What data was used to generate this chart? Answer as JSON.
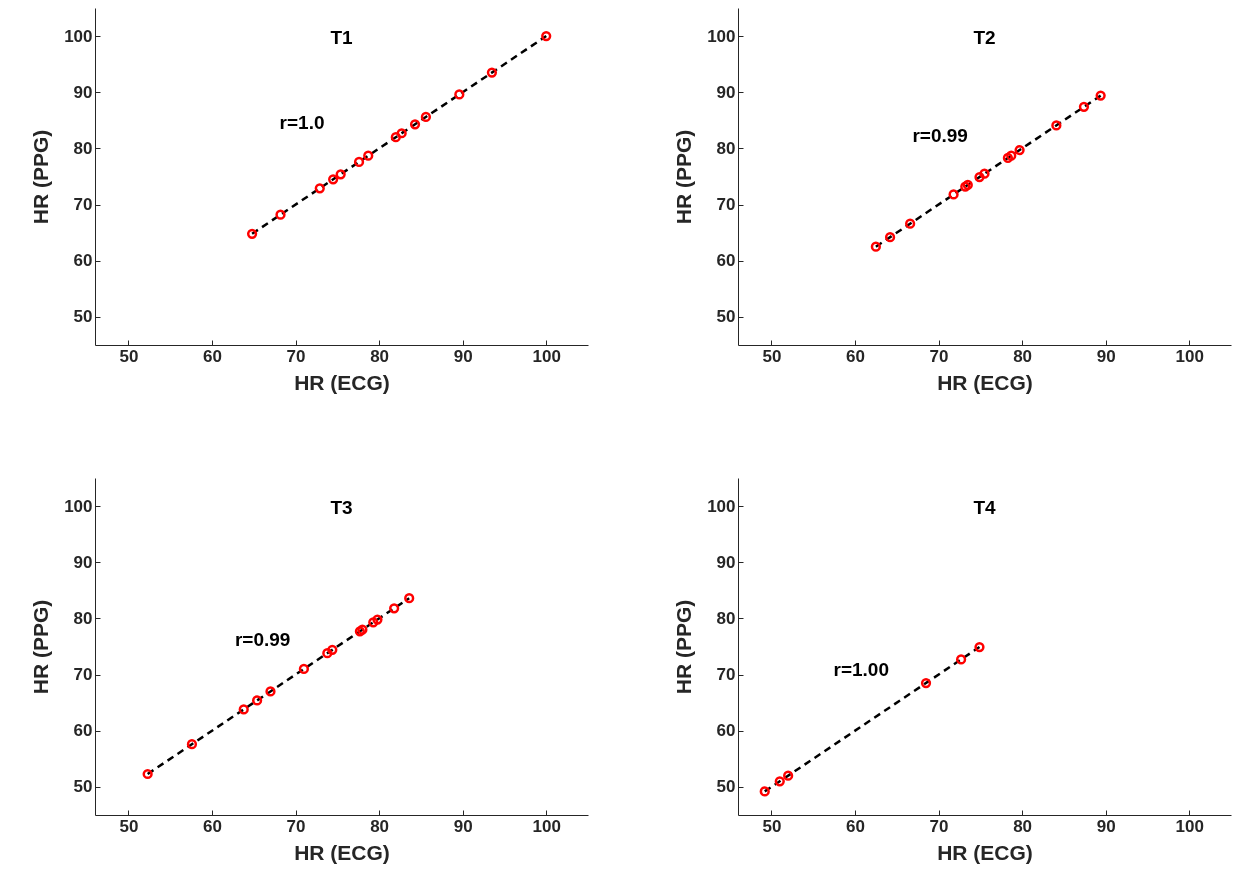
{
  "chart_data": [
    {
      "type": "scatter",
      "title": "T1",
      "xlabel": "HR (ECG)",
      "ylabel": "HR (PPG)",
      "xlim": [
        46,
        105
      ],
      "ylim": [
        45,
        105
      ],
      "xticks": [
        50,
        60,
        70,
        80,
        90,
        100
      ],
      "yticks": [
        50,
        60,
        70,
        80,
        90,
        100
      ],
      "grid": false,
      "annotations": [
        "r=1.0"
      ],
      "series": [
        {
          "color": "#ff0000",
          "marker": "circle",
          "x": [
            64.8,
            68.2,
            72.9,
            74.5,
            75.4,
            77.6,
            78.7,
            82,
            82.7,
            84.3,
            85.6,
            89.6,
            93.5,
            100
          ],
          "values": [
            64.8,
            68.2,
            72.9,
            74.5,
            75.4,
            77.6,
            78.7,
            82,
            82.7,
            84.3,
            85.6,
            89.6,
            93.5,
            100
          ]
        },
        {
          "type": "line",
          "color": "#000000",
          "line_style": "dashed",
          "x": [
            64.8,
            100
          ],
          "values": [
            64.8,
            100
          ]
        }
      ]
    },
    {
      "type": "scatter",
      "title": "T2",
      "xlabel": "HR (ECG)",
      "ylabel": "HR (PPG)",
      "xlim": [
        46,
        105
      ],
      "ylim": [
        45,
        105
      ],
      "xticks": [
        50,
        60,
        70,
        80,
        90,
        100
      ],
      "yticks": [
        50,
        60,
        70,
        80,
        90,
        100
      ],
      "grid": false,
      "annotations": [
        "r=0.99"
      ],
      "series": [
        {
          "color": "#ff0000",
          "marker": "circle",
          "x": [
            62.5,
            64.2,
            66.6,
            71.8,
            73.2,
            73.5,
            74.9,
            75.5,
            78.3,
            78.7,
            79.7,
            84.1,
            87.4,
            89.4
          ],
          "values": [
            62.5,
            64.2,
            66.6,
            71.8,
            73.2,
            73.5,
            74.9,
            75.5,
            78.3,
            78.7,
            79.7,
            84.1,
            87.4,
            89.4
          ]
        },
        {
          "type": "line",
          "color": "#000000",
          "line_style": "dashed",
          "x": [
            62.5,
            89.4
          ],
          "values": [
            62.5,
            89.4
          ]
        }
      ]
    },
    {
      "type": "scatter",
      "title": "T3",
      "xlabel": "HR (ECG)",
      "ylabel": "HR (PPG)",
      "xlim": [
        46,
        105
      ],
      "ylim": [
        45,
        105
      ],
      "xticks": [
        50,
        60,
        70,
        80,
        90,
        100
      ],
      "yticks": [
        50,
        60,
        70,
        80,
        90,
        100
      ],
      "grid": false,
      "annotations": [
        "r=0.99"
      ],
      "series": [
        {
          "color": "#ff0000",
          "marker": "circle",
          "x": [
            52.3,
            57.6,
            63.8,
            65.4,
            67,
            71,
            73.8,
            74.4,
            77.7,
            78,
            79.3,
            79.8,
            81.8,
            83.6
          ],
          "values": [
            52.3,
            57.6,
            63.8,
            65.4,
            67,
            71,
            73.8,
            74.4,
            77.7,
            78,
            79.3,
            79.8,
            81.8,
            83.6
          ]
        },
        {
          "type": "line",
          "color": "#000000",
          "line_style": "dashed",
          "x": [
            52.3,
            83.6
          ],
          "values": [
            52.3,
            83.6
          ]
        }
      ]
    },
    {
      "type": "scatter",
      "title": "T4",
      "xlabel": "HR (ECG)",
      "ylabel": "HR (PPG)",
      "xlim": [
        46,
        105
      ],
      "ylim": [
        45,
        105
      ],
      "xticks": [
        50,
        60,
        70,
        80,
        90,
        100
      ],
      "yticks": [
        50,
        60,
        70,
        80,
        90,
        100
      ],
      "grid": false,
      "annotations": [
        "r=1.00"
      ],
      "series": [
        {
          "color": "#ff0000",
          "marker": "circle",
          "x": [
            49.2,
            51,
            52,
            68.5,
            72.7,
            74.9
          ],
          "values": [
            49.2,
            51,
            52,
            68.5,
            72.7,
            74.9
          ]
        },
        {
          "type": "line",
          "color": "#000000",
          "line_style": "dashed",
          "x": [
            49.2,
            74.9
          ],
          "values": [
            49.2,
            74.9
          ]
        }
      ]
    }
  ]
}
